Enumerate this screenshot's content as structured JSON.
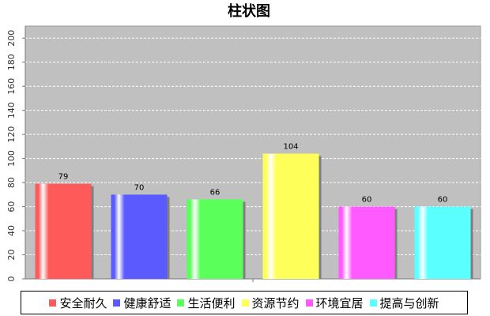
{
  "chart_data": {
    "type": "bar",
    "title": "柱状图",
    "categories": [
      "安全耐久",
      "健康舒适",
      "生活便利",
      "资源节约",
      "环境宜居",
      "提高与创新"
    ],
    "values": [
      79,
      70,
      66,
      104,
      60,
      60
    ],
    "colors": [
      "#ff5a5a",
      "#5a5aff",
      "#5aff5a",
      "#ffff5a",
      "#ff5aff",
      "#5affff"
    ],
    "ylim": [
      0,
      210
    ],
    "yticks": [
      0,
      20,
      40,
      60,
      80,
      100,
      120,
      140,
      160,
      180,
      200
    ],
    "xlabel": "",
    "ylabel": "",
    "grid": true,
    "legend_position": "bottom",
    "plot_background": "#c0c0c0"
  }
}
